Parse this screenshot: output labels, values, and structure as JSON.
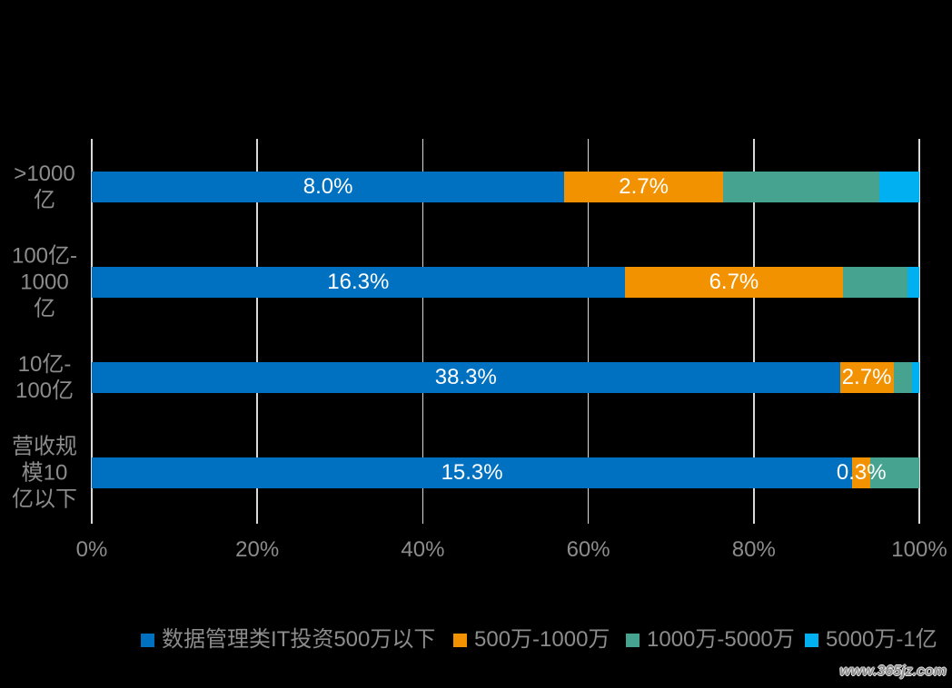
{
  "chart_data": {
    "type": "bar",
    "horizontal": true,
    "stacked": true,
    "categories": [
      ">1000\n亿",
      "100亿-\n1000\n亿",
      "10亿-\n100亿",
      "营收规\n模10\n亿以下"
    ],
    "series": [
      {
        "name": "数据管理类IT投资500万以下",
        "color": "#0070C0",
        "values": [
          57.1,
          64.4,
          90.4,
          91.9
        ],
        "data_labels": [
          "8.0%",
          "16.3%",
          "38.3%",
          "15.3%"
        ]
      },
      {
        "name": "500万-1000万",
        "color": "#F39200",
        "values": [
          19.2,
          26.4,
          6.5,
          2.2
        ],
        "data_labels": [
          "2.7%",
          "6.7%",
          "2.7%",
          "0.3%"
        ]
      },
      {
        "name": "1000万-5000万",
        "color": "#45A38F",
        "values": [
          18.9,
          7.8,
          2.2,
          5.9
        ]
      },
      {
        "name": "5000万-1亿",
        "color": "#00B0F0",
        "values": [
          4.8,
          1.4,
          0.9,
          0.0
        ]
      }
    ],
    "xlim": [
      0,
      100
    ],
    "x_ticks": [
      0,
      20,
      40,
      60,
      80,
      100
    ],
    "x_tick_labels": [
      "0%",
      "20%",
      "40%",
      "60%",
      "80%",
      "100%"
    ],
    "grid": true,
    "legend": "bottom"
  },
  "watermark": "www.365jz.com"
}
